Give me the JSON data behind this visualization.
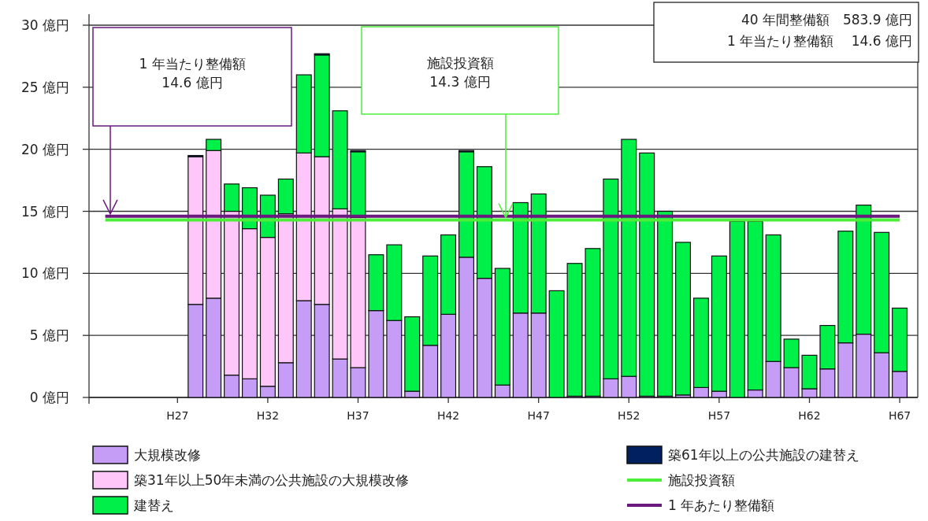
{
  "chart_data": {
    "type": "bar",
    "stacked": true,
    "categories": [
      null,
      null,
      null,
      null,
      "H27",
      null,
      null,
      null,
      null,
      "H32",
      null,
      null,
      null,
      null,
      "H37",
      null,
      null,
      null,
      null,
      "H42",
      null,
      null,
      null,
      null,
      "H47",
      null,
      null,
      null,
      null,
      "H52",
      null,
      null,
      null,
      null,
      "H57",
      null,
      null,
      null,
      null,
      "H62",
      null,
      null,
      null,
      null,
      "H67"
    ],
    "series": [
      {
        "name": "大規模改修",
        "color": "#c59cf6",
        "values": [
          null,
          null,
          null,
          null,
          null,
          7.5,
          8.0,
          1.8,
          1.5,
          0.9,
          2.8,
          7.8,
          7.5,
          3.1,
          2.4,
          7.0,
          6.2,
          0.5,
          4.2,
          6.7,
          11.3,
          9.6,
          1.0,
          6.8,
          6.8,
          0,
          0.1,
          0.1,
          1.5,
          1.7,
          0.1,
          0.1,
          0.2,
          0.8,
          0.5,
          0,
          0.6,
          2.9,
          2.4,
          0.7,
          2.3,
          4.4,
          5.1,
          3.6,
          2.1
        ]
      },
      {
        "name": "築31年以上50年未満の公共施設の大規模改修",
        "color": "#ffc6f9",
        "values": [
          null,
          null,
          null,
          null,
          null,
          11.9,
          11.9,
          13.2,
          12.1,
          12.0,
          12.0,
          11.9,
          11.9,
          12.1,
          12.1,
          0,
          0,
          0,
          0,
          0,
          0,
          0,
          0,
          0,
          0,
          0,
          0,
          0,
          0,
          0,
          0,
          0,
          0,
          0,
          0,
          0,
          0,
          0,
          0,
          0,
          0,
          0,
          0,
          0,
          0
        ]
      },
      {
        "name": "建替え",
        "color": "#00f04a",
        "values": [
          null,
          null,
          null,
          null,
          null,
          0,
          0.9,
          2.2,
          3.3,
          3.4,
          2.8,
          6.3,
          8.2,
          7.9,
          5.3,
          4.5,
          6.1,
          6.0,
          7.2,
          6.4,
          8.5,
          9.0,
          9.4,
          8.9,
          9.6,
          8.6,
          10.7,
          11.9,
          16.1,
          19.1,
          19.6,
          14.9,
          12.3,
          7.2,
          10.9,
          14.2,
          13.6,
          10.2,
          2.3,
          2.7,
          3.5,
          9.0,
          10.4,
          9.7,
          5.1
        ]
      },
      {
        "name": "築61年以上の公共施設の建替え",
        "color": "#002060",
        "values": [
          null,
          null,
          null,
          null,
          null,
          0.1,
          0,
          0,
          0,
          0,
          0,
          0,
          0.1,
          0,
          0.1,
          0,
          0,
          0,
          0,
          0,
          0.1,
          0,
          0,
          0,
          0,
          0,
          0,
          0,
          0,
          0,
          0,
          0,
          0,
          0,
          0,
          0,
          0,
          0,
          0,
          0,
          0,
          0,
          0,
          0,
          0
        ]
      }
    ],
    "ylim": [
      0,
      30
    ],
    "yticks": [
      {
        "value": 0,
        "label": "0 億円"
      },
      {
        "value": 5,
        "label": "5 億円"
      },
      {
        "value": 10,
        "label": "10 億円"
      },
      {
        "value": 15,
        "label": "15 億円"
      },
      {
        "value": 20,
        "label": "20 億円"
      },
      {
        "value": 25,
        "label": "25 億円"
      },
      {
        "value": 30,
        "label": "30 億円"
      }
    ],
    "grid": "y",
    "legend": "bottom",
    "ref_lines": [
      {
        "axis": "y",
        "value": 14.3,
        "label": "施設投資額",
        "color": "#4cee3a"
      },
      {
        "axis": "y",
        "value": 14.6,
        "label": "1 年あたり整備額",
        "color": "#6a1a7e"
      }
    ],
    "annotations": [
      "1 年当たり整備額\n14.6 億円",
      "施設投資額\n14.3 億円",
      "40 年間整備額　583.9 億円",
      "1 年当たり整備額　 14.6 億円"
    ]
  }
}
